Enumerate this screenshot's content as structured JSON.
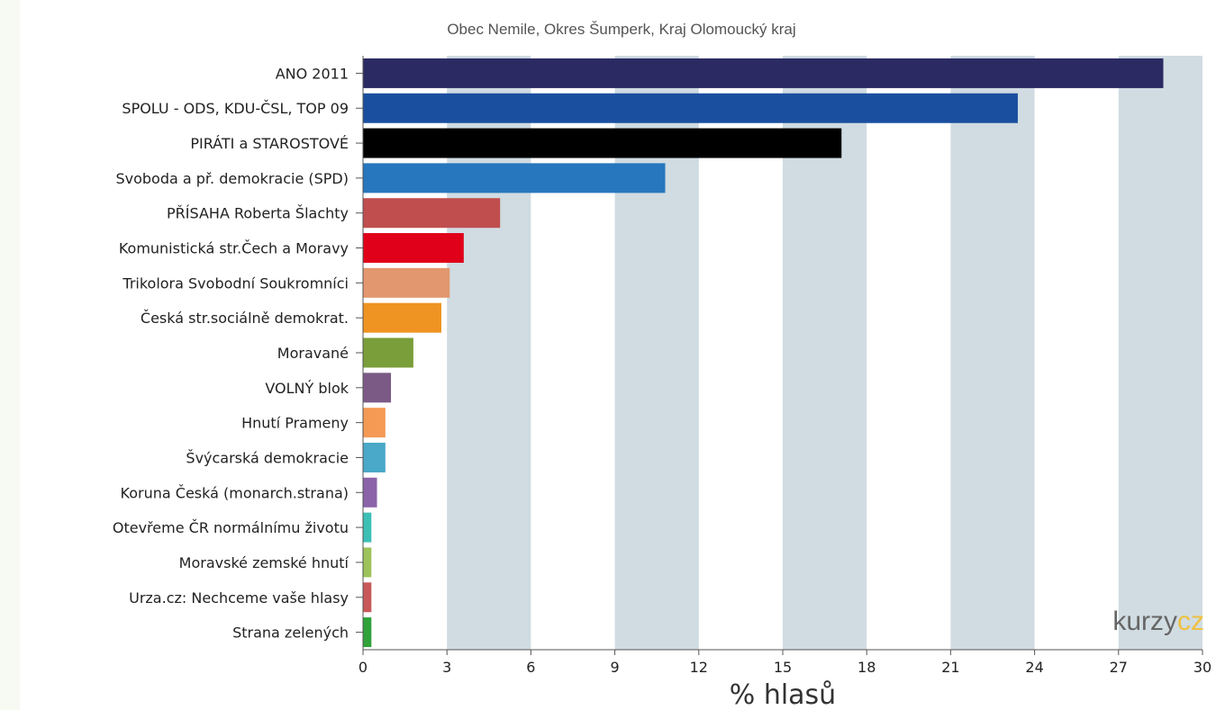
{
  "chart_data": {
    "type": "bar",
    "orientation": "horizontal",
    "title": "Obec Nemile, Okres Šumperk, Kraj Olomoucký kraj",
    "xlabel": "% hlasů",
    "ylabel": "",
    "xlim": [
      0,
      30
    ],
    "x_ticks": [
      0,
      3,
      6,
      9,
      12,
      15,
      18,
      21,
      24,
      27,
      30
    ],
    "grid": "alternating vertical bands",
    "categories": [
      "ANO 2011",
      "SPOLU - ODS, KDU-ČSL, TOP 09",
      "PIRÁTI a STAROSTOVÉ",
      "Svoboda a př. demokracie (SPD)",
      "PŘÍSAHA Roberta Šlachty",
      "Komunistická str.Čech a Moravy",
      "Trikolora Svobodní Soukromníci",
      "Česká str.sociálně demokrat.",
      "Moravané",
      "VOLNÝ blok",
      "Hnutí Prameny",
      "Švýcarská demokracie",
      "Koruna Česká (monarch.strana)",
      "Otevřeme ČR normálnímu životu",
      "Moravské zemské hnutí",
      "Urza.cz: Nechceme vaše hlasy",
      "Strana zelených"
    ],
    "values": [
      28.6,
      23.4,
      17.1,
      10.8,
      4.9,
      3.6,
      3.1,
      2.8,
      1.8,
      1.0,
      0.8,
      0.8,
      0.5,
      0.3,
      0.3,
      0.3,
      0.3
    ],
    "colors": [
      "#2b2a63",
      "#1a4fa0",
      "#000000",
      "#2677bd",
      "#c04e4e",
      "#e0001a",
      "#e3976e",
      "#ef9422",
      "#7a9e3a",
      "#7c5a86",
      "#f49a55",
      "#4aa8c8",
      "#8a63a8",
      "#3cc0b6",
      "#9dc35a",
      "#c95858",
      "#2fa23a"
    ]
  },
  "colors": {
    "band": "#d0dce2",
    "axis": "#555555",
    "background": "#ffffff"
  },
  "watermark": {
    "part1": "kurzy",
    "part2": "cz"
  }
}
